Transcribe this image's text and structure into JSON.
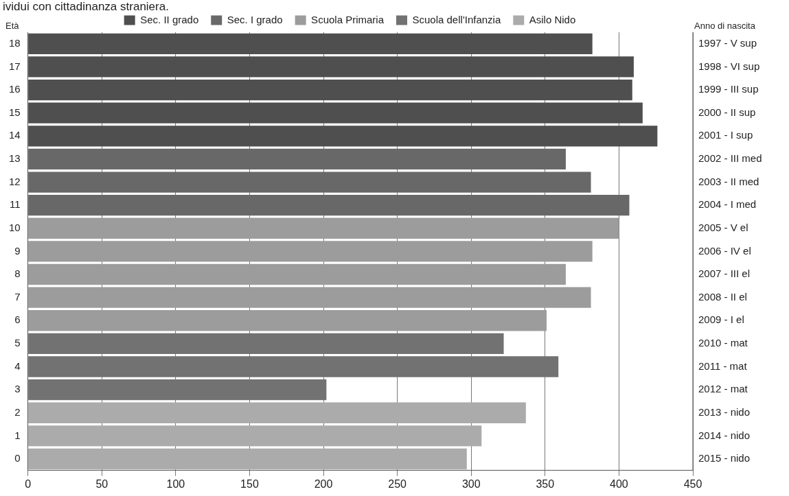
{
  "chart_data": {
    "type": "bar",
    "orientation": "horizontal",
    "title": "ividui con cittadinanza straniera.",
    "ylabel": "Età",
    "y2label": "Anno di nascita",
    "categories": [
      "18",
      "17",
      "16",
      "15",
      "14",
      "13",
      "12",
      "11",
      "10",
      "9",
      "8",
      "7",
      "6",
      "5",
      "4",
      "3",
      "2",
      "1",
      "0"
    ],
    "series": [
      {
        "name": "Sec. II grado",
        "color": "#4f4f4f",
        "values": [
          382,
          410,
          409,
          416,
          426,
          null,
          null,
          null,
          null,
          null,
          null,
          null,
          null,
          null,
          null,
          null,
          null,
          null,
          null
        ]
      },
      {
        "name": "Sec. I grado",
        "color": "#686868",
        "values": [
          null,
          null,
          null,
          null,
          null,
          364,
          381,
          407,
          null,
          null,
          null,
          null,
          null,
          null,
          null,
          null,
          null,
          null,
          null
        ]
      },
      {
        "name": "Scuola Primaria",
        "color": "#9c9c9c",
        "values": [
          null,
          null,
          null,
          null,
          null,
          null,
          null,
          null,
          400,
          382,
          364,
          381,
          351,
          null,
          null,
          null,
          null,
          null,
          null
        ]
      },
      {
        "name": "Scuola dell'Infanzia",
        "color": "#727272",
        "values": [
          null,
          null,
          null,
          null,
          null,
          null,
          null,
          null,
          null,
          null,
          null,
          null,
          null,
          322,
          359,
          202,
          null,
          null,
          null
        ]
      },
      {
        "name": "Asilo Nido",
        "color": "#ababab",
        "values": [
          null,
          null,
          null,
          null,
          null,
          null,
          null,
          null,
          null,
          null,
          null,
          null,
          null,
          null,
          null,
          null,
          337,
          307,
          297
        ]
      }
    ],
    "xlim": [
      0,
      450
    ],
    "xticks": [
      0,
      50,
      100,
      150,
      200,
      250,
      300,
      350,
      400,
      450
    ],
    "grid": "x",
    "legend": "top",
    "annotations": [
      "1997 - V sup",
      "1998 - VI sup",
      "1999 - III sup",
      "2000 - II sup",
      "2001 - I sup",
      "2002 - III med",
      "2003 - II med",
      "2004 - I med",
      "2005 - V el",
      "2006 - IV el",
      "2007 - III el",
      "2008 - II el",
      "2009 - I el",
      "2010 - mat",
      "2011 - mat",
      "2012 - mat",
      "2013 - nido",
      "2014 - nido",
      "2015 - nido"
    ]
  }
}
